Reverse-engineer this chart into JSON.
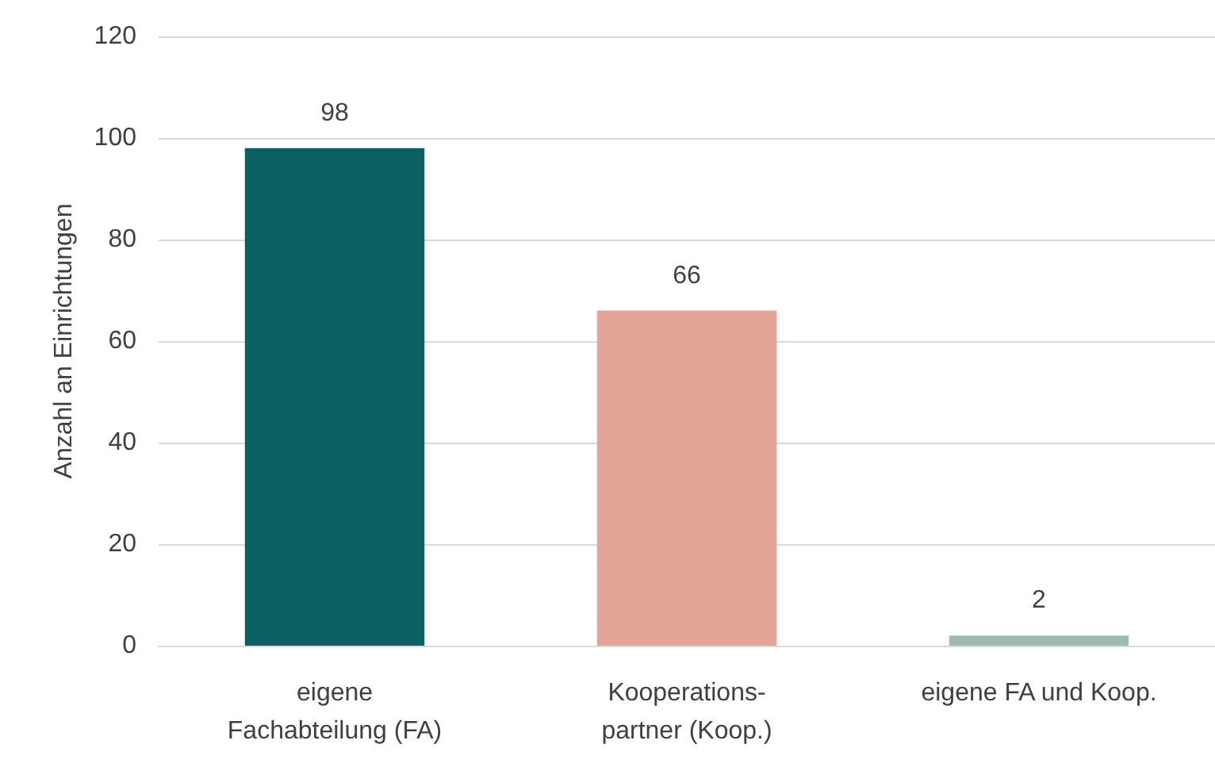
{
  "chart_data": {
    "type": "bar",
    "ylabel": "Anzahl an Einrichtungen",
    "categories": [
      "eigene Fachabteilung (FA)",
      "Kooperations-partner (Koop.)",
      "eigene FA und Koop."
    ],
    "values": [
      98,
      66,
      2
    ],
    "colors": [
      "#0b6061",
      "#e2a497",
      "#9dbab3"
    ],
    "ylim": [
      0,
      120
    ],
    "yticks": [
      0,
      20,
      40,
      60,
      80,
      100,
      120
    ],
    "grid": "y",
    "data_labels": true
  }
}
